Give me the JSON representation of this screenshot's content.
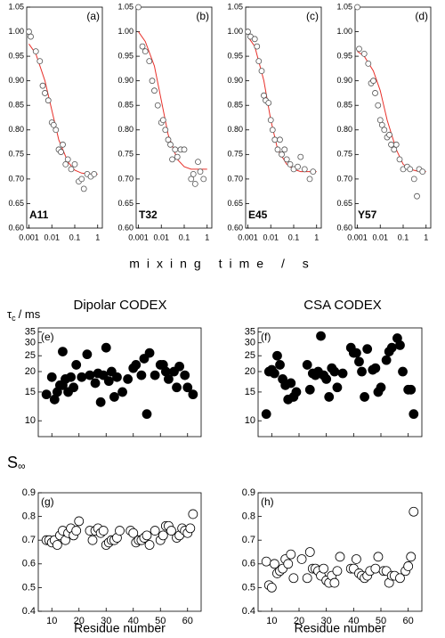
{
  "labels": {
    "mixing_xlabel": "mixing time / s",
    "left_title": "Dipolar CODEX",
    "right_title": "CSA CODEX"
  },
  "chart_data": [
    {
      "type": "scatter",
      "panel": "(a)",
      "annotation": "A11",
      "xscale": "log",
      "xlim": [
        0.0008,
        1.6
      ],
      "ylim": [
        0.6,
        1.05
      ],
      "xticks": [
        0.001,
        0.01,
        0.1,
        1
      ],
      "yticks": [
        {
          "value": 0.6,
          "label": "0.60"
        },
        0.65,
        {
          "value": 0.7,
          "label": "0.70"
        },
        0.75,
        {
          "value": 0.8,
          "label": "0.80"
        },
        0.85,
        {
          "value": 0.9,
          "label": "0.90"
        },
        0.95,
        {
          "value": 1.0,
          "label": "1.00"
        },
        1.05
      ],
      "marker": "open",
      "color": "#555555",
      "fit_color": "#e8302a",
      "x": [
        0.001,
        0.0012,
        0.002,
        0.003,
        0.004,
        0.005,
        0.007,
        0.01,
        0.012,
        0.015,
        0.02,
        0.025,
        0.03,
        0.04,
        0.05,
        0.07,
        0.1,
        0.15,
        0.2,
        0.25,
        0.35,
        0.5,
        0.7
      ],
      "values": [
        1.0,
        0.99,
        0.96,
        0.94,
        0.89,
        0.875,
        0.86,
        0.815,
        0.81,
        0.8,
        0.76,
        0.755,
        0.77,
        0.73,
        0.74,
        0.72,
        0.73,
        0.695,
        0.7,
        0.68,
        0.71,
        0.705,
        0.71
      ],
      "fit_x": [
        0.001,
        0.002,
        0.005,
        0.01,
        0.02,
        0.05,
        0.1,
        0.2,
        0.5,
        1
      ],
      "fit_values": [
        0.975,
        0.955,
        0.9,
        0.84,
        0.78,
        0.735,
        0.718,
        0.712,
        0.71,
        0.71
      ]
    },
    {
      "type": "scatter",
      "panel": "(b)",
      "annotation": "T32",
      "xscale": "log",
      "xlim": [
        0.0008,
        1.6
      ],
      "ylim": [
        0.6,
        1.05
      ],
      "xticks": [
        0.001,
        0.01,
        0.1,
        1
      ],
      "yticks": [
        {
          "value": 0.6,
          "label": "0.60"
        },
        0.65,
        {
          "value": 0.7,
          "label": "0.70"
        },
        0.75,
        {
          "value": 0.8,
          "label": "0.80"
        },
        0.85,
        {
          "value": 0.9,
          "label": "0.90"
        },
        0.95,
        {
          "value": 1.0,
          "label": "1.00"
        },
        1.05
      ],
      "marker": "open",
      "color": "#555555",
      "fit_color": "#e8302a",
      "x": [
        0.001,
        0.0015,
        0.002,
        0.003,
        0.004,
        0.005,
        0.007,
        0.01,
        0.012,
        0.015,
        0.02,
        0.025,
        0.03,
        0.04,
        0.05,
        0.07,
        0.1,
        0.2,
        0.25,
        0.3,
        0.4,
        0.5,
        0.7
      ],
      "values": [
        1.05,
        0.97,
        0.96,
        0.94,
        0.9,
        0.88,
        0.85,
        0.815,
        0.82,
        0.8,
        0.78,
        0.77,
        0.74,
        0.76,
        0.745,
        0.76,
        0.76,
        0.7,
        0.71,
        0.69,
        0.735,
        0.715,
        0.7
      ],
      "fit_x": [
        0.001,
        0.002,
        0.005,
        0.01,
        0.02,
        0.05,
        0.1,
        0.2,
        0.5,
        1
      ],
      "fit_values": [
        1.0,
        0.98,
        0.93,
        0.86,
        0.79,
        0.74,
        0.725,
        0.72,
        0.72,
        0.72
      ]
    },
    {
      "type": "scatter",
      "panel": "(c)",
      "annotation": "E45",
      "xscale": "log",
      "xlim": [
        0.0008,
        1.6
      ],
      "ylim": [
        0.6,
        1.05
      ],
      "xticks": [
        0.001,
        0.01,
        0.1,
        1
      ],
      "yticks": [
        {
          "value": 0.6,
          "label": "0.60"
        },
        0.65,
        {
          "value": 0.7,
          "label": "0.70"
        },
        0.75,
        {
          "value": 0.8,
          "label": "0.80"
        },
        0.85,
        {
          "value": 0.9,
          "label": "0.90"
        },
        0.95,
        {
          "value": 1.0,
          "label": "1.00"
        },
        1.05
      ],
      "marker": "open",
      "color": "#555555",
      "fit_color": "#e8302a",
      "x": [
        0.001,
        0.0013,
        0.002,
        0.0025,
        0.003,
        0.004,
        0.005,
        0.006,
        0.008,
        0.01,
        0.012,
        0.015,
        0.02,
        0.025,
        0.03,
        0.04,
        0.05,
        0.07,
        0.1,
        0.15,
        0.2,
        0.3,
        0.5,
        0.7
      ],
      "values": [
        1.0,
        0.99,
        0.985,
        0.97,
        0.94,
        0.92,
        0.87,
        0.86,
        0.855,
        0.82,
        0.8,
        0.78,
        0.76,
        0.78,
        0.75,
        0.76,
        0.74,
        0.73,
        0.72,
        0.725,
        0.745,
        0.72,
        0.7,
        0.715
      ],
      "fit_x": [
        0.001,
        0.002,
        0.005,
        0.01,
        0.02,
        0.05,
        0.1,
        0.2,
        0.5,
        1
      ],
      "fit_values": [
        0.99,
        0.97,
        0.9,
        0.82,
        0.76,
        0.73,
        0.72,
        0.715,
        0.715,
        0.715
      ]
    },
    {
      "type": "scatter",
      "panel": "(d)",
      "annotation": "Y57",
      "xscale": "log",
      "xlim": [
        0.0008,
        1.6
      ],
      "ylim": [
        0.6,
        1.05
      ],
      "xticks": [
        0.001,
        0.01,
        0.1,
        1
      ],
      "yticks": [
        {
          "value": 0.6,
          "label": "0.60"
        },
        0.65,
        {
          "value": 0.7,
          "label": "0.70"
        },
        0.75,
        {
          "value": 0.8,
          "label": "0.80"
        },
        0.85,
        {
          "value": 0.9,
          "label": "0.90"
        },
        0.95,
        {
          "value": 1.0,
          "label": "1.00"
        },
        1.05
      ],
      "marker": "open",
      "color": "#555555",
      "fit_color": "#e8302a",
      "x": [
        0.001,
        0.0012,
        0.002,
        0.003,
        0.004,
        0.005,
        0.006,
        0.008,
        0.01,
        0.012,
        0.015,
        0.02,
        0.025,
        0.03,
        0.04,
        0.05,
        0.07,
        0.1,
        0.15,
        0.2,
        0.3,
        0.4,
        0.5,
        0.7
      ],
      "values": [
        1.05,
        0.965,
        0.955,
        0.935,
        0.895,
        0.9,
        0.875,
        0.85,
        0.82,
        0.81,
        0.8,
        0.785,
        0.79,
        0.77,
        0.76,
        0.77,
        0.74,
        0.72,
        0.725,
        0.72,
        0.7,
        0.665,
        0.72,
        0.715
      ],
      "fit_x": [
        0.001,
        0.002,
        0.005,
        0.01,
        0.02,
        0.05,
        0.1,
        0.2,
        0.5,
        1
      ],
      "fit_values": [
        0.96,
        0.95,
        0.92,
        0.88,
        0.82,
        0.76,
        0.73,
        0.72,
        0.715,
        0.715
      ]
    },
    {
      "type": "scatter",
      "panel": "(e)",
      "ylabel": {
        "symbol": "τ",
        "subscript": "c",
        "unit": "/ ms"
      },
      "yscale": "log",
      "xlim": [
        5,
        65
      ],
      "ylim": [
        8,
        37
      ],
      "xticks": [
        10,
        20,
        30,
        40,
        50,
        60
      ],
      "show_xtick_labels": false,
      "yticks": [
        10,
        15,
        20,
        25,
        30,
        35
      ],
      "marker": "filled",
      "color": "#000000",
      "x": [
        8,
        10,
        11,
        12,
        13,
        14,
        14,
        15,
        16,
        17,
        18,
        19,
        21,
        23,
        24,
        26,
        27,
        28,
        29,
        30,
        31,
        32,
        33,
        34,
        36,
        38,
        40,
        41,
        43,
        44,
        45,
        46,
        48,
        50,
        51,
        52,
        53,
        55,
        56,
        57,
        59,
        60,
        62
      ],
      "values": [
        14.5,
        18.5,
        13.5,
        15,
        16.5,
        16.5,
        26.5,
        18,
        15,
        18.5,
        16,
        22,
        18.5,
        25.5,
        19,
        17,
        19.5,
        13,
        19,
        28,
        17.5,
        20,
        14,
        18.5,
        15,
        18,
        21,
        22,
        19,
        24,
        11,
        26,
        19,
        22,
        22,
        20,
        18,
        20,
        16,
        21.5,
        19,
        16,
        14.5
      ]
    },
    {
      "type": "scatter",
      "panel": "(f)",
      "yscale": "log",
      "xlim": [
        5,
        65
      ],
      "ylim": [
        8,
        37
      ],
      "xticks": [
        10,
        20,
        30,
        40,
        50,
        60
      ],
      "show_xtick_labels": false,
      "yticks": [
        10,
        15,
        20,
        25,
        30,
        35
      ],
      "marker": "filled",
      "color": "#000000",
      "x": [
        8,
        9,
        10,
        11,
        12,
        13,
        14,
        15,
        16,
        17,
        18,
        19,
        23,
        24,
        25,
        26,
        27,
        28,
        29,
        30,
        31,
        32,
        33,
        34,
        36,
        39,
        40,
        41,
        42,
        43,
        44,
        45,
        47,
        48,
        49,
        50,
        52,
        53,
        54,
        56,
        57,
        58,
        60,
        61,
        62
      ],
      "values": [
        11,
        20,
        20.5,
        19.5,
        25,
        22,
        18,
        16.5,
        13.5,
        17,
        14,
        15,
        22,
        15.5,
        19.5,
        19,
        20,
        33,
        19,
        18,
        14,
        21,
        20,
        16,
        19.5,
        28,
        26,
        26,
        23,
        20,
        14,
        27.5,
        20.5,
        21,
        15,
        16,
        23.5,
        26.5,
        28,
        32,
        29,
        20,
        15.5,
        15.5,
        11
      ]
    },
    {
      "type": "scatter",
      "panel": "(g)",
      "ylabel": {
        "symbol": "S",
        "subscript": "∞"
      },
      "xlabel": "Residue number",
      "xlim": [
        5,
        65
      ],
      "ylim": [
        0.4,
        0.9
      ],
      "xticks": [
        10,
        20,
        30,
        40,
        50,
        60
      ],
      "yticks": [
        0.4,
        0.5,
        0.6,
        0.7,
        0.8,
        0.9
      ],
      "marker": "open",
      "color": "#000000",
      "x": [
        8,
        9,
        10,
        11,
        12,
        13,
        14,
        15,
        16,
        17,
        18,
        19,
        20,
        24,
        25,
        26,
        27,
        28,
        29,
        30,
        31,
        32,
        33,
        34,
        35,
        39,
        40,
        41,
        42,
        43,
        44,
        45,
        46,
        48,
        50,
        51,
        52,
        53,
        54,
        56,
        57,
        58,
        59,
        60,
        61,
        62
      ],
      "values": [
        0.7,
        0.7,
        0.69,
        0.7,
        0.68,
        0.72,
        0.74,
        0.7,
        0.73,
        0.75,
        0.72,
        0.74,
        0.78,
        0.74,
        0.7,
        0.74,
        0.75,
        0.73,
        0.74,
        0.68,
        0.69,
        0.7,
        0.7,
        0.71,
        0.74,
        0.74,
        0.73,
        0.69,
        0.7,
        0.7,
        0.71,
        0.72,
        0.68,
        0.74,
        0.7,
        0.72,
        0.76,
        0.76,
        0.74,
        0.71,
        0.72,
        0.75,
        0.74,
        0.73,
        0.75,
        0.81
      ]
    },
    {
      "type": "scatter",
      "panel": "(h)",
      "xlabel": "Residue number",
      "xlim": [
        5,
        65
      ],
      "ylim": [
        0.4,
        0.9
      ],
      "xticks": [
        10,
        20,
        30,
        40,
        50,
        60
      ],
      "yticks": [
        0.4,
        0.5,
        0.6,
        0.7,
        0.8,
        0.9
      ],
      "marker": "open",
      "color": "#000000",
      "x": [
        8,
        9,
        10,
        11,
        12,
        13,
        14,
        15,
        16,
        17,
        18,
        21,
        23,
        24,
        25,
        26,
        27,
        28,
        29,
        30,
        31,
        32,
        33,
        34,
        35,
        39,
        40,
        41,
        42,
        43,
        44,
        45,
        46,
        48,
        49,
        51,
        52,
        53,
        54,
        55,
        57,
        59,
        60,
        61,
        62
      ],
      "values": [
        0.61,
        0.51,
        0.5,
        0.6,
        0.56,
        0.57,
        0.58,
        0.62,
        0.6,
        0.64,
        0.54,
        0.62,
        0.54,
        0.65,
        0.58,
        0.58,
        0.57,
        0.55,
        0.58,
        0.53,
        0.52,
        0.55,
        0.52,
        0.57,
        0.63,
        0.58,
        0.58,
        0.62,
        0.56,
        0.55,
        0.54,
        0.55,
        0.57,
        0.58,
        0.63,
        0.57,
        0.57,
        0.52,
        0.55,
        0.55,
        0.54,
        0.57,
        0.59,
        0.63,
        0.82
      ]
    }
  ]
}
